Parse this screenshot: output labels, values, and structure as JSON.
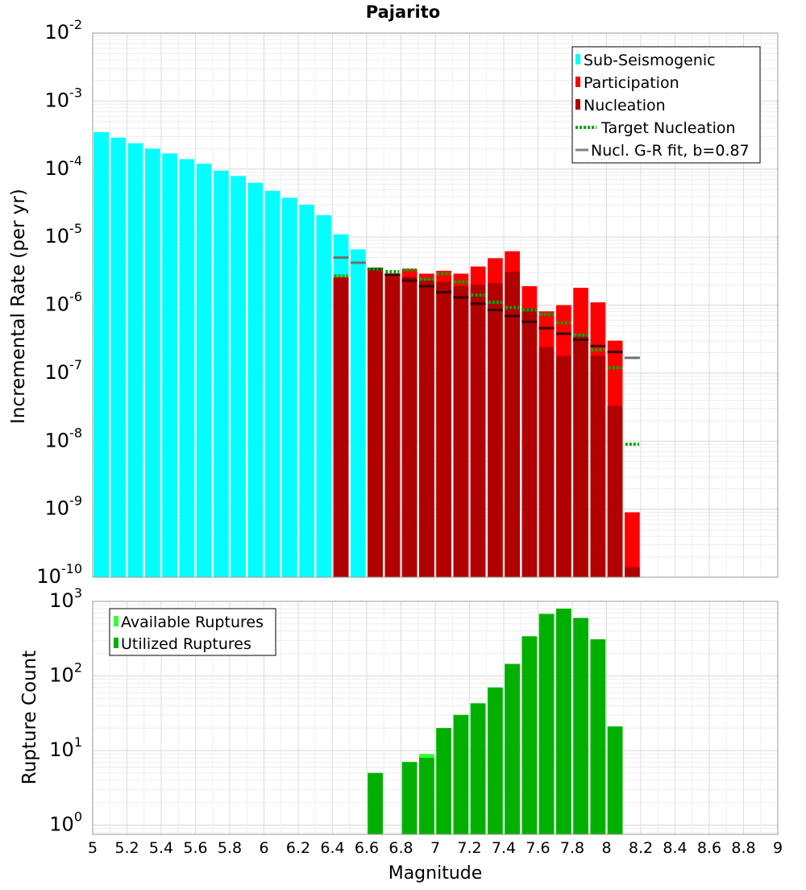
{
  "chart_data": [
    {
      "type": "bar",
      "title": "Pajarito",
      "ylabel": "Incremental Rate (per yr)",
      "xlabel": "",
      "xlim": [
        5,
        9
      ],
      "ylim": [
        1e-10,
        0.01
      ],
      "yscale": "log",
      "grid": true,
      "legend_position": "top-right",
      "y_ticks": [
        {
          "base": "10",
          "exp": "-10"
        },
        {
          "base": "10",
          "exp": "-9"
        },
        {
          "base": "10",
          "exp": "-8"
        },
        {
          "base": "10",
          "exp": "-7"
        },
        {
          "base": "10",
          "exp": "-6"
        },
        {
          "base": "10",
          "exp": "-5"
        },
        {
          "base": "10",
          "exp": "-4"
        },
        {
          "base": "10",
          "exp": "-3"
        },
        {
          "base": "10",
          "exp": "-2"
        }
      ],
      "legend": [
        {
          "label": "Sub-Seismogenic",
          "color": "#00ffff",
          "kind": "box"
        },
        {
          "label": "Participation",
          "color": "#ff0000",
          "kind": "box"
        },
        {
          "label": "Nucleation",
          "color": "#b00000",
          "kind": "box"
        },
        {
          "label": "Target Nucleation",
          "color": "#00aa00",
          "kind": "dotted"
        },
        {
          "label": "Nucl. G-R fit, b=0.87",
          "color": "#808080",
          "kind": "line"
        }
      ],
      "series": [
        {
          "name": "Sub-Seismogenic",
          "color": "#00ffff",
          "x": [
            5.05,
            5.15,
            5.25,
            5.35,
            5.45,
            5.55,
            5.65,
            5.75,
            5.85,
            5.95,
            6.05,
            6.15,
            6.25,
            6.35,
            6.45,
            6.55
          ],
          "values": [
            0.00035,
            0.00029,
            0.00024,
            0.0002,
            0.00017,
            0.00014,
            0.00012,
            9.5e-05,
            7.9e-05,
            6.3e-05,
            4.8e-05,
            3.8e-05,
            3e-05,
            2.1e-05,
            1.1e-05,
            6.6e-06
          ]
        },
        {
          "name": "Participation",
          "color": "#ff0000",
          "x": [
            6.45,
            6.65,
            6.75,
            6.85,
            6.95,
            7.05,
            7.15,
            7.25,
            7.35,
            7.45,
            7.55,
            7.65,
            7.75,
            7.85,
            7.95,
            8.05,
            8.15
          ],
          "values": [
            2.6e-06,
            3.5e-06,
            2.9e-06,
            3.4e-06,
            2.9e-06,
            3.2e-06,
            2.9e-06,
            3.7e-06,
            4.9e-06,
            6.2e-06,
            1.9e-06,
            8.1e-07,
            1e-06,
            1.8e-06,
            1.1e-06,
            3e-07,
            9e-10
          ]
        },
        {
          "name": "Nucleation",
          "color": "#b00000",
          "x": [
            6.45,
            6.65,
            6.75,
            6.85,
            6.95,
            7.05,
            7.15,
            7.25,
            7.35,
            7.45,
            7.55,
            7.65,
            7.75,
            7.85,
            7.95,
            8.05,
            8.15
          ],
          "values": [
            2.5e-06,
            3.4e-06,
            2.8e-06,
            2.6e-06,
            2.3e-06,
            2.2e-06,
            1.9e-06,
            2e-06,
            2.1e-06,
            3.1e-06,
            9e-07,
            2.4e-07,
            1.8e-07,
            3.5e-07,
            1.8e-07,
            3.3e-08,
            1.4e-10
          ]
        },
        {
          "name": "Target Nucleation",
          "color": "#00aa00",
          "x": [
            6.45,
            6.65,
            6.75,
            6.85,
            6.95,
            7.05,
            7.15,
            7.25,
            7.35,
            7.45,
            7.55,
            7.65,
            7.75,
            7.85,
            7.95,
            8.05,
            8.15
          ],
          "values": [
            2.7e-06,
            3.4e-06,
            3.1e-06,
            3.3e-06,
            2.4e-06,
            2.9e-06,
            2.2e-06,
            1.4e-06,
            1.1e-06,
            9.2e-07,
            8.5e-07,
            7.3e-07,
            5.5e-07,
            3.6e-07,
            2.2e-07,
            1.2e-07,
            9e-09
          ]
        },
        {
          "name": "Nucl. G-R fit, b=0.87",
          "color": "#808080",
          "x": [
            6.45,
            6.55,
            6.65,
            6.75,
            6.85,
            6.95,
            7.05,
            7.15,
            7.25,
            7.35,
            7.45,
            7.55,
            7.65,
            7.75,
            7.85,
            7.95,
            8.05,
            8.15
          ],
          "values": [
            5e-06,
            4.2e-06,
            3.4e-06,
            2.8e-06,
            2.3e-06,
            1.9e-06,
            1.55e-06,
            1.3e-06,
            1.05e-06,
            8.5e-07,
            6.9e-07,
            5.7e-07,
            4.6e-07,
            3.8e-07,
            3.1e-07,
            2.5e-07,
            2.05e-07,
            1.68e-07
          ]
        }
      ]
    },
    {
      "type": "bar",
      "title": "",
      "ylabel": "Rupture Count",
      "xlabel": "Magnitude",
      "xlim": [
        5,
        9
      ],
      "ylim": [
        0.75,
        1000
      ],
      "yscale": "log",
      "grid": true,
      "legend_position": "top-left",
      "x_ticks": [
        "5",
        "5.2",
        "5.4",
        "5.6",
        "5.8",
        "6",
        "6.2",
        "6.4",
        "6.6",
        "6.8",
        "7",
        "7.2",
        "7.4",
        "7.6",
        "7.8",
        "8",
        "8.2",
        "8.4",
        "8.6",
        "8.8",
        "9"
      ],
      "y_ticks": [
        {
          "base": "10",
          "exp": "0"
        },
        {
          "base": "10",
          "exp": "1"
        },
        {
          "base": "10",
          "exp": "2"
        },
        {
          "base": "10",
          "exp": "3"
        }
      ],
      "legend": [
        {
          "label": "Available Ruptures",
          "color": "#33ff33",
          "kind": "box"
        },
        {
          "label": "Utilized Ruptures",
          "color": "#00b000",
          "kind": "box"
        }
      ],
      "series": [
        {
          "name": "Available Ruptures",
          "color": "#33ff33",
          "x": [
            6.65,
            6.85,
            6.95,
            7.05,
            7.15,
            7.25,
            7.35,
            7.45,
            7.55,
            7.65,
            7.75,
            7.85,
            7.95,
            8.05
          ],
          "values": [
            5,
            7,
            9,
            20,
            30,
            43,
            70,
            145,
            340,
            680,
            800,
            600,
            310,
            21
          ]
        },
        {
          "name": "Utilized Ruptures",
          "color": "#00b000",
          "x": [
            6.65,
            6.85,
            6.95,
            7.05,
            7.15,
            7.25,
            7.35,
            7.45,
            7.55,
            7.65,
            7.75,
            7.85,
            7.95,
            8.05
          ],
          "values": [
            5,
            7,
            8,
            20,
            30,
            43,
            70,
            145,
            340,
            680,
            800,
            600,
            310,
            21
          ]
        }
      ]
    }
  ]
}
